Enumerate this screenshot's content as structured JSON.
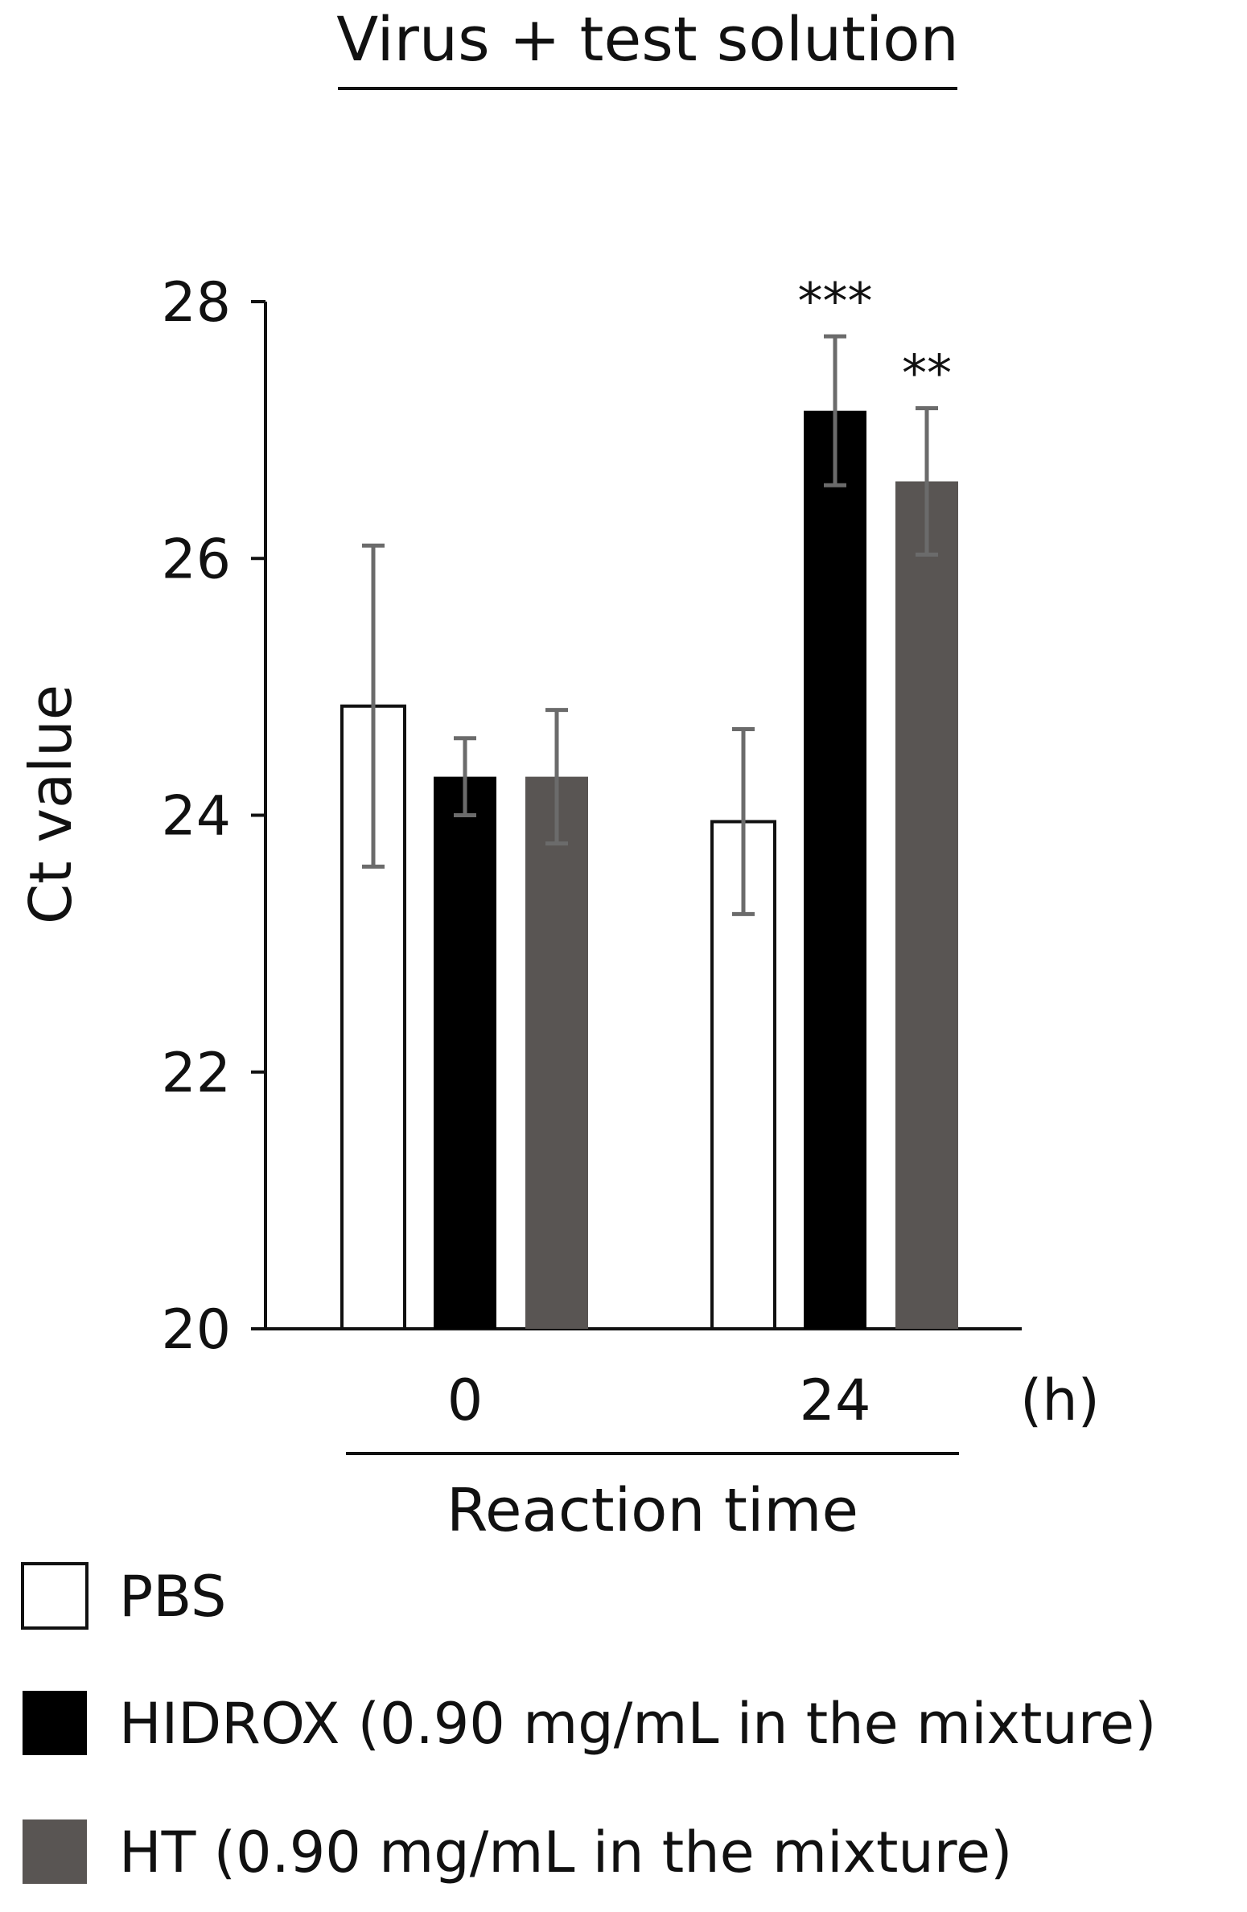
{
  "chart_data": {
    "type": "bar",
    "title": "Virus + test solution",
    "ylabel": "Ct value",
    "xlabel": "Reaction time",
    "x_unit": "(h)",
    "ylim": [
      20,
      28
    ],
    "yticks": [
      "20",
      "22",
      "24",
      "26",
      "28"
    ],
    "grid": false,
    "categories": [
      "0",
      "24"
    ],
    "series": [
      {
        "name": "PBS",
        "color": "#ffffff",
        "values": [
          24.85,
          23.95
        ],
        "errors": [
          1.25,
          0.72
        ],
        "significance": [
          "",
          ""
        ]
      },
      {
        "name": "HIDROX (0.90 mg/mL in the mixture)",
        "color": "#000000",
        "values": [
          24.3,
          27.15
        ],
        "errors": [
          0.3,
          0.58
        ],
        "significance": [
          "",
          "***"
        ]
      },
      {
        "name": "HT (0.90 mg/mL in the mixture)",
        "color": "#595553",
        "values": [
          24.3,
          26.6
        ],
        "errors": [
          0.52,
          0.57
        ],
        "significance": [
          "",
          "**"
        ]
      }
    ],
    "legend_position": "bottom-left"
  }
}
